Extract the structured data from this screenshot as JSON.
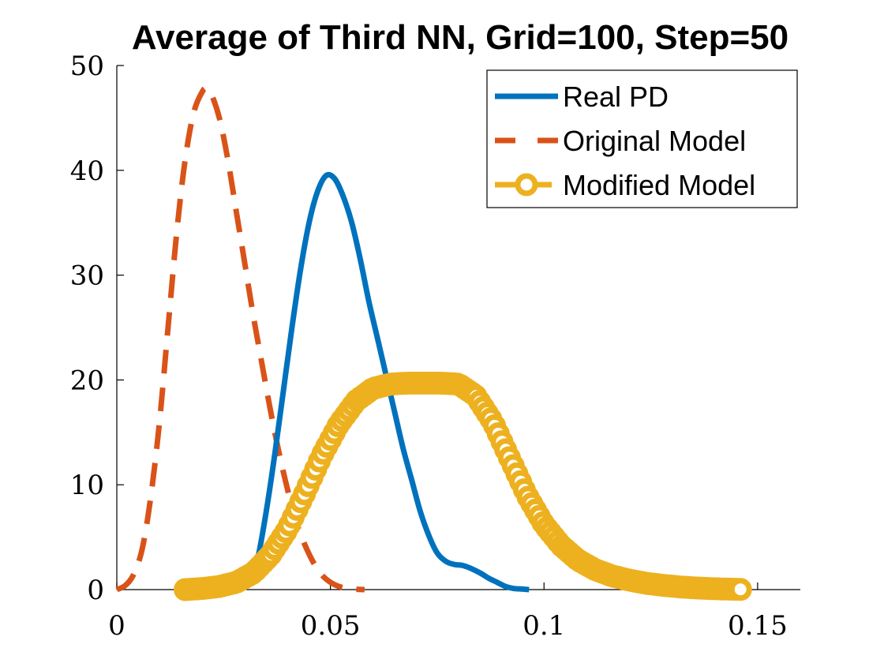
{
  "chart_data": {
    "type": "line",
    "title": "Average of Third NN, Grid=100, Step=50",
    "xlabel": "",
    "ylabel": "",
    "xlim": [
      0,
      0.16
    ],
    "ylim": [
      0,
      50
    ],
    "x_ticks": [
      "0",
      "0.05",
      "0.1",
      "0.15"
    ],
    "x_tick_values": [
      0,
      0.05,
      0.1,
      0.15
    ],
    "y_ticks": [
      "0",
      "10",
      "20",
      "30",
      "40",
      "50"
    ],
    "y_tick_values": [
      0,
      10,
      20,
      30,
      40,
      50
    ],
    "grid": false,
    "legend_position": "top-right",
    "series": [
      {
        "name": "Real PD",
        "color": "#0072BD",
        "style": "solid",
        "x": [
          0.031,
          0.033,
          0.035,
          0.037,
          0.039,
          0.041,
          0.043,
          0.045,
          0.047,
          0.049,
          0.051,
          0.053,
          0.055,
          0.057,
          0.059,
          0.061,
          0.063,
          0.065,
          0.067,
          0.069,
          0.071,
          0.073,
          0.075,
          0.077,
          0.079,
          0.081,
          0.083,
          0.085,
          0.087,
          0.089,
          0.091,
          0.093,
          0.095,
          0.0965
        ],
        "y": [
          0.5,
          3,
          7.5,
          13,
          19,
          25,
          30.5,
          35,
          38,
          39.5,
          39.2,
          37.5,
          35,
          31.5,
          27.5,
          24,
          20.5,
          17,
          13.5,
          10.5,
          7.5,
          5.2,
          3.5,
          2.7,
          2.4,
          2.3,
          2.0,
          1.6,
          1.1,
          0.7,
          0.3,
          0.1,
          0.05,
          0
        ]
      },
      {
        "name": "Original Model",
        "color": "#D95319",
        "style": "dashed",
        "x": [
          0.0,
          0.002,
          0.004,
          0.006,
          0.008,
          0.01,
          0.012,
          0.014,
          0.016,
          0.018,
          0.02,
          0.021,
          0.022,
          0.024,
          0.026,
          0.028,
          0.03,
          0.032,
          0.034,
          0.036,
          0.038,
          0.04,
          0.042,
          0.044,
          0.046,
          0.048,
          0.05,
          0.052,
          0.054,
          0.056,
          0.058
        ],
        "y": [
          0,
          0.4,
          1.5,
          4,
          9,
          16,
          25,
          34,
          41,
          45.5,
          47.5,
          47.8,
          47.4,
          45,
          41,
          36,
          31,
          26,
          21.5,
          17,
          13,
          9.5,
          6.5,
          4.3,
          2.6,
          1.4,
          0.7,
          0.3,
          0.1,
          0.03,
          0
        ]
      },
      {
        "name": "Modified Model",
        "color": "#EDB120",
        "style": "dashed-circle",
        "x": [
          0.016,
          0.02,
          0.024,
          0.028,
          0.032,
          0.036,
          0.04,
          0.044,
          0.048,
          0.052,
          0.056,
          0.06,
          0.064,
          0.068,
          0.072,
          0.076,
          0.08,
          0.084,
          0.088,
          0.092,
          0.096,
          0.1,
          0.104,
          0.108,
          0.112,
          0.116,
          0.12,
          0.124,
          0.128,
          0.132,
          0.136,
          0.14,
          0.144,
          0.146
        ],
        "y": [
          0,
          0.1,
          0.3,
          0.7,
          1.6,
          3.3,
          5.8,
          9.2,
          12.8,
          15.8,
          18,
          19.2,
          19.6,
          19.7,
          19.7,
          19.7,
          19.6,
          18.5,
          16,
          12.5,
          9,
          6.2,
          4.2,
          2.8,
          1.9,
          1.3,
          0.9,
          0.6,
          0.4,
          0.25,
          0.15,
          0.08,
          0.04,
          0.02
        ]
      }
    ]
  }
}
